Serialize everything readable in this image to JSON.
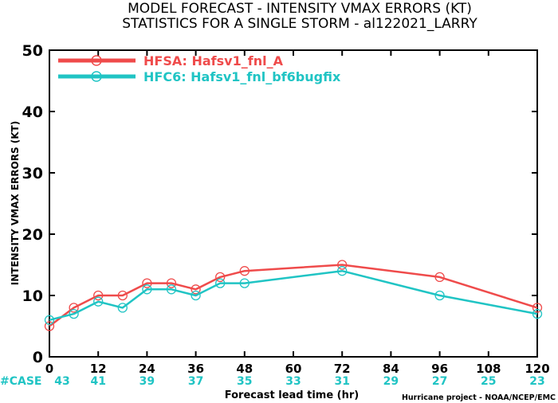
{
  "chart_data": {
    "type": "line",
    "title": "MODEL FORECAST - INTENSITY VMAX ERRORS (KT)",
    "subtitle": "STATISTICS FOR A SINGLE STORM - al122021_LARRY",
    "xlabel": "Forecast lead time (hr)",
    "ylabel": "INTENSITY VMAX ERRORS (KT)",
    "xlim": [
      0,
      120
    ],
    "ylim": [
      0,
      50
    ],
    "xticks": [
      0,
      12,
      24,
      36,
      48,
      60,
      72,
      84,
      96,
      108,
      120
    ],
    "yticks": [
      0,
      10,
      20,
      30,
      40,
      50
    ],
    "grid": false,
    "legend_position": "top-left",
    "series": [
      {
        "name": "HFSA: Hafsv1_fnl_A",
        "color": "#ef4b4b",
        "x": [
          0,
          6,
          12,
          18,
          24,
          30,
          36,
          42,
          48,
          72,
          96,
          120
        ],
        "y": [
          5,
          8,
          10,
          10,
          12,
          12,
          11,
          13,
          14,
          15,
          13,
          8
        ]
      },
      {
        "name": "HFC6: Hafsv1_fnl_bf6bugfix",
        "color": "#20c4c4",
        "x": [
          0,
          6,
          12,
          18,
          24,
          30,
          36,
          42,
          48,
          72,
          96,
          120
        ],
        "y": [
          6,
          7,
          9,
          8,
          11,
          11,
          10,
          12,
          12,
          14,
          10,
          7
        ]
      }
    ],
    "case_label": "#CASE",
    "case_color": "#20c4c4",
    "case_counts": [
      43,
      41,
      39,
      37,
      35,
      33,
      31,
      29,
      27,
      25,
      23
    ],
    "credit": "Hurricane project - NOAA/NCEP/EMC"
  }
}
